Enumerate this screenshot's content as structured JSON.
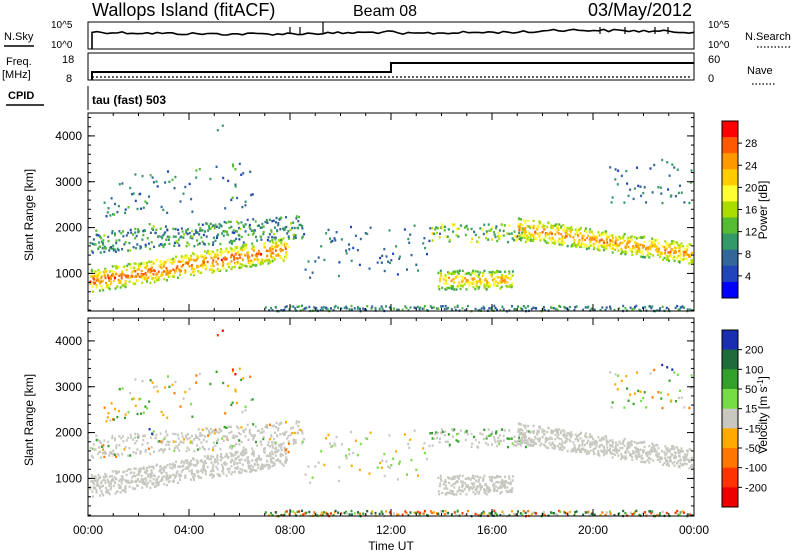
{
  "header": {
    "station": "Wallops Island (fitACF)",
    "beam": "Beam 08",
    "date": "03/May/2012"
  },
  "status_panels": {
    "nsky_label": "N.Sky",
    "nsky_ticks": [
      "10^5",
      "10^0"
    ],
    "nsearch_label": "N.Search",
    "nsearch_ticks": [
      "10^5",
      "10^0"
    ],
    "freq_label": "Freq.",
    "freq_unit": "[MHz]",
    "freq_ticks": [
      "18",
      "8"
    ],
    "nave_label": "Nave",
    "nave_ticks": [
      "60",
      "0"
    ],
    "cpid_label": "CPID",
    "cpid_value": "tau (fast) 503"
  },
  "chart_data": [
    {
      "type": "heatmap",
      "panel": "power",
      "ylabel": "Slant Range [km]",
      "xlabel": "",
      "x_ticks": [
        "00:00",
        "04:00",
        "08:00",
        "12:00",
        "16:00",
        "20:00",
        "00:00"
      ],
      "y_ticks": [
        "1000",
        "2000",
        "3000",
        "4000"
      ],
      "xlim_hours": [
        0,
        24
      ],
      "ylim_km": [
        180,
        4500
      ],
      "colorbar": {
        "label": "Power [dB]",
        "ticks": [
          "28",
          "24",
          "20",
          "16",
          "12",
          "8",
          "4"
        ],
        "colors": [
          "#ff0000",
          "#ff5a00",
          "#ff9900",
          "#ffcc00",
          "#ffff33",
          "#aadd00",
          "#55bb33",
          "#339966",
          "#336699",
          "#2244bb",
          "#0000ff"
        ],
        "range": [
          0,
          30
        ]
      },
      "features": [
        {
          "name": "main band",
          "hours": [
            0.0,
            8.0
          ],
          "range_km": [
            1000,
            1900
          ],
          "level_db": 24
        },
        {
          "name": "upper scatter",
          "hours": [
            0.0,
            8.5
          ],
          "range_km": [
            1900,
            3000
          ],
          "level_db": 8
        },
        {
          "name": "mid-day patch",
          "hours": [
            13.8,
            16.8
          ],
          "range_km": [
            650,
            1100
          ],
          "level_db": 22
        },
        {
          "name": "evening band",
          "hours": [
            17.0,
            24.0
          ],
          "range_km": [
            1200,
            2100
          ],
          "level_db": 22
        }
      ]
    },
    {
      "type": "heatmap",
      "panel": "velocity",
      "ylabel": "Slant Range [km]",
      "xlabel": "Time UT",
      "x_ticks": [
        "00:00",
        "04:00",
        "08:00",
        "12:00",
        "16:00",
        "20:00",
        "00:00"
      ],
      "y_ticks": [
        "1000",
        "2000",
        "3000",
        "4000"
      ],
      "xlim_hours": [
        0,
        24
      ],
      "ylim_km": [
        180,
        4500
      ],
      "colorbar": {
        "label": "Velocity [m s^-1]",
        "ticks": [
          "200",
          "100",
          "50",
          "15",
          "-15",
          "-50",
          "-100",
          "-200"
        ],
        "colors": [
          "#1a2fb0",
          "#1f6b3a",
          "#33a02c",
          "#77dd44",
          "#c8c8c0",
          "#ffaa00",
          "#ff7700",
          "#ff3300",
          "#ee0000"
        ],
        "range": [
          -250,
          250
        ]
      },
      "features": [
        {
          "name": "ground scatter",
          "hours": [
            0.0,
            8.0
          ],
          "range_km": [
            850,
            1900
          ],
          "velocity": 0
        },
        {
          "name": "mid-day ground scatter",
          "hours": [
            13.8,
            16.8
          ],
          "range_km": [
            650,
            1150
          ],
          "velocity": 0
        },
        {
          "name": "evening ground scatter",
          "hours": [
            17.0,
            24.0
          ],
          "range_km": [
            1200,
            2300
          ],
          "velocity": 0
        }
      ]
    }
  ]
}
